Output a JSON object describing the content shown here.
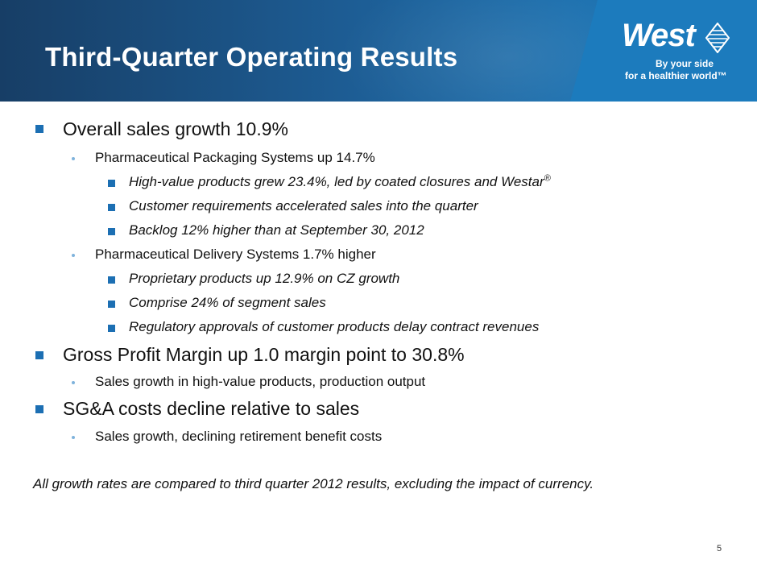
{
  "header": {
    "title": "Third-Quarter Operating Results"
  },
  "logo": {
    "name": "West",
    "tagline_line1": "By your side",
    "tagline_line2": "for a healthier world™"
  },
  "bullets": {
    "b1": "Overall sales growth 10.9%",
    "b1_1": "Pharmaceutical Packaging Systems up 14.7%",
    "b1_1_1": "High-value products grew 23.4%, led by coated closures and Westar",
    "b1_1_1_mark": "®",
    "b1_1_2": "Customer requirements accelerated sales into the quarter",
    "b1_1_3": "Backlog 12% higher than at September 30, 2012",
    "b1_2": "Pharmaceutical Delivery Systems 1.7% higher",
    "b1_2_1": "Proprietary products up 12.9% on CZ growth",
    "b1_2_2": "Comprise 24% of segment sales",
    "b1_2_3": "Regulatory approvals of customer products delay contract revenues",
    "b2": "Gross Profit Margin up 1.0 margin point to 30.8%",
    "b2_1": " Sales growth in high-value products, production output",
    "b3": "SG&A costs decline relative to sales",
    "b3_1": "Sales growth, declining retirement benefit costs"
  },
  "footnote": "All growth rates are compared to third quarter 2012 results, excluding the impact of currency.",
  "page_number": "5",
  "colors": {
    "header_dark": "#173e66",
    "header_light": "#1a78b8",
    "bullet_square": "#1c6fb3",
    "bullet_dot": "#7fb3dc"
  }
}
